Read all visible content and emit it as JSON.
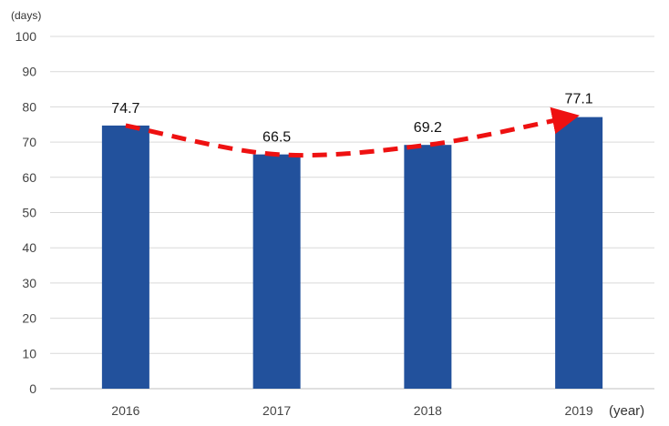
{
  "chart_data": {
    "type": "bar",
    "categories": [
      "2016",
      "2017",
      "2018",
      "2019"
    ],
    "values": [
      74.7,
      66.5,
      69.2,
      77.1
    ],
    "data_labels": [
      "74.7",
      "66.5",
      "69.2",
      "77.1"
    ],
    "yticks": [
      "0",
      "10",
      "20",
      "30",
      "40",
      "50",
      "60",
      "70",
      "80",
      "90",
      "100"
    ],
    "ylim": [
      0,
      100
    ],
    "ylabel": "(days)",
    "xlabel": "(year)",
    "grid": true,
    "trend_line": {
      "style": "dashed",
      "arrow": true
    },
    "colors": {
      "bar": "#22519c",
      "trend": "#ee1111",
      "grid": "#d9d9d9",
      "axis": "#bfbfbf"
    }
  }
}
